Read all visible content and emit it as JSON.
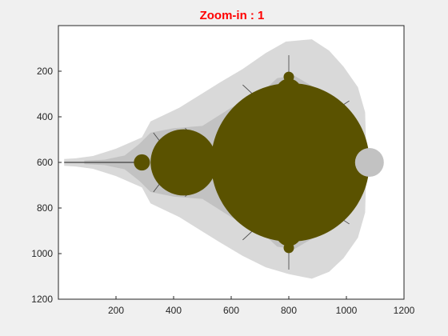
{
  "chart_data": {
    "type": "heatmap",
    "title": "Zoom-in : 1",
    "title_color": "#ff0000",
    "xlabel": "",
    "ylabel": "",
    "xlim": [
      0,
      1200
    ],
    "ylim": [
      1200,
      0
    ],
    "y_axis_direction": "reversed",
    "x_ticks": [
      200,
      400,
      600,
      800,
      1000,
      1200
    ],
    "y_ticks": [
      200,
      400,
      600,
      800,
      1000,
      1200
    ],
    "x_tick_labels": [
      "200",
      "400",
      "600",
      "800",
      "1000",
      "1200"
    ],
    "y_tick_labels": [
      "200",
      "400",
      "600",
      "800",
      "1000",
      "1200"
    ],
    "grid": false,
    "colors": {
      "interior": "#5a5200",
      "outer_band": "#d9d9d9",
      "inner_band": "#c2c2c2",
      "background": "#ffffff",
      "filament": "#404040"
    }
  }
}
